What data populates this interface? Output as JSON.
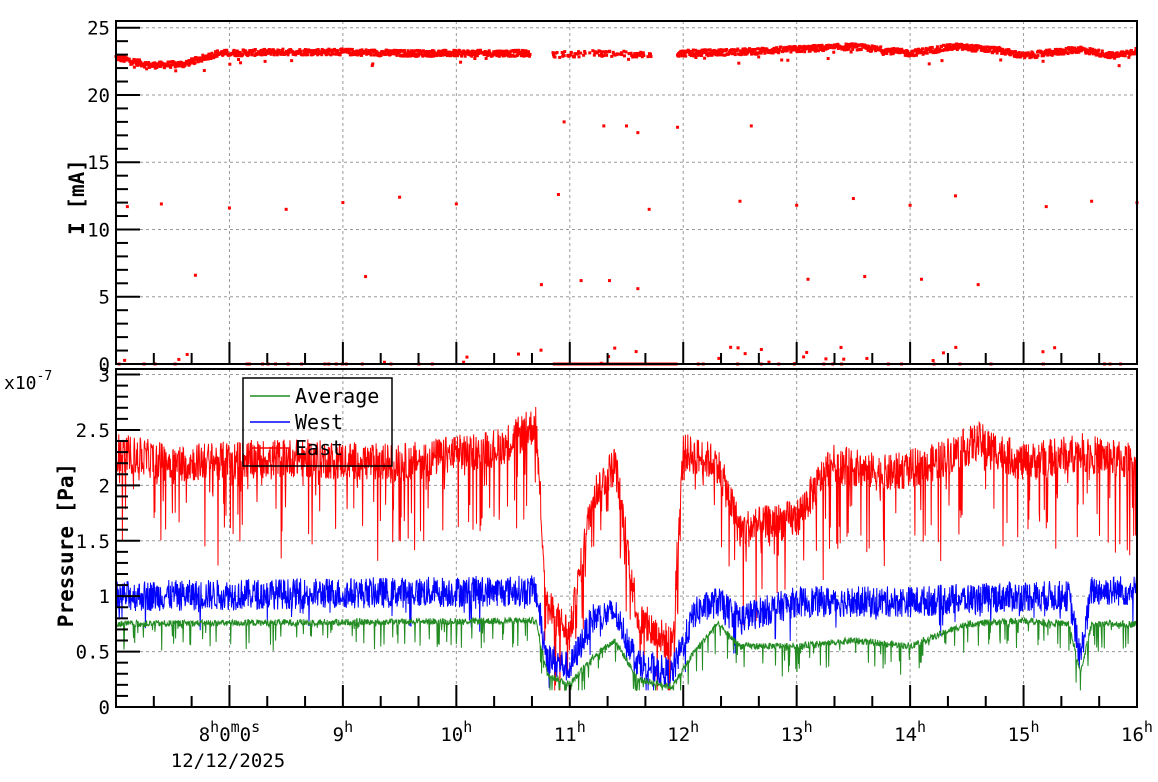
{
  "chart_data": [
    {
      "type": "scatter",
      "title": "",
      "xlabel": "",
      "ylabel": "I [mA]",
      "ylim": [
        0,
        25.5
      ],
      "yticks": [
        "0",
        "5",
        "10",
        "15",
        "20",
        "25"
      ],
      "grid": true,
      "series": [
        {
          "name": "Current",
          "color": "#ff0000",
          "description": "Beam current ~22-23.7 mA from 7.0h to 16.0h, with gap 10.65h-10.85h and 11.7h-11.95h; sporadic outliers near 18, 12, 6 and 0 mA",
          "main_band": [
            [
              7.0,
              22.8
            ],
            [
              7.3,
              22.2
            ],
            [
              7.6,
              22.3
            ],
            [
              7.9,
              23.1
            ],
            [
              8.5,
              23.2
            ],
            [
              9.0,
              23.2
            ],
            [
              9.5,
              23.1
            ],
            [
              10.0,
              23.1
            ],
            [
              10.6,
              23.1
            ],
            [
              10.9,
              23.0
            ],
            [
              11.2,
              23.1
            ],
            [
              11.6,
              23.0
            ],
            [
              12.0,
              23.1
            ],
            [
              12.5,
              23.2
            ],
            [
              13.0,
              23.4
            ],
            [
              13.5,
              23.6
            ],
            [
              14.0,
              23.1
            ],
            [
              14.4,
              23.6
            ],
            [
              14.8,
              23.3
            ],
            [
              15.0,
              22.9
            ],
            [
              15.5,
              23.4
            ],
            [
              15.8,
              22.9
            ],
            [
              16.0,
              23.3
            ]
          ],
          "outliers": [
            [
              10.95,
              18.0
            ],
            [
              11.3,
              17.7
            ],
            [
              11.5,
              17.7
            ],
            [
              11.6,
              17.2
            ],
            [
              11.95,
              17.6
            ],
            [
              12.6,
              17.7
            ],
            [
              7.1,
              11.7
            ],
            [
              7.4,
              11.9
            ],
            [
              8.0,
              11.6
            ],
            [
              8.5,
              11.5
            ],
            [
              9.0,
              12.0
            ],
            [
              9.5,
              12.4
            ],
            [
              10.0,
              11.9
            ],
            [
              10.9,
              12.6
            ],
            [
              11.7,
              11.5
            ],
            [
              12.5,
              12.1
            ],
            [
              13.0,
              11.8
            ],
            [
              13.5,
              12.3
            ],
            [
              14.0,
              11.8
            ],
            [
              14.4,
              12.5
            ],
            [
              15.2,
              11.7
            ],
            [
              15.6,
              12.1
            ],
            [
              16.0,
              12.0
            ],
            [
              7.7,
              6.6
            ],
            [
              9.2,
              6.5
            ],
            [
              10.75,
              5.9
            ],
            [
              11.1,
              6.2
            ],
            [
              11.35,
              6.2
            ],
            [
              11.6,
              5.6
            ],
            [
              13.1,
              6.3
            ],
            [
              13.6,
              6.5
            ],
            [
              14.1,
              6.3
            ],
            [
              14.6,
              5.9
            ]
          ]
        }
      ]
    },
    {
      "type": "line",
      "title": "",
      "xlabel": "",
      "ylabel": "Pressure [Pa]",
      "y_multiplier": "x10^-7",
      "ylim": [
        0,
        3.05
      ],
      "yticks": [
        "0",
        "0.5",
        "1",
        "1.5",
        "2",
        "2.5",
        "3"
      ],
      "grid": true,
      "legend_position": "upper-left",
      "series": [
        {
          "name": "Average",
          "color": "#228b22",
          "baseline": [
            [
              7.0,
              0.75
            ],
            [
              10.7,
              0.78
            ],
            [
              10.8,
              0.3
            ],
            [
              11.0,
              0.2
            ],
            [
              11.2,
              0.45
            ],
            [
              11.4,
              0.6
            ],
            [
              11.6,
              0.25
            ],
            [
              11.9,
              0.18
            ],
            [
              12.1,
              0.5
            ],
            [
              12.3,
              0.75
            ],
            [
              12.5,
              0.55
            ],
            [
              13.0,
              0.55
            ],
            [
              13.5,
              0.6
            ],
            [
              14.0,
              0.55
            ],
            [
              14.5,
              0.75
            ],
            [
              15.0,
              0.78
            ],
            [
              15.4,
              0.75
            ],
            [
              15.5,
              0.3
            ],
            [
              15.6,
              0.75
            ],
            [
              16.0,
              0.75
            ]
          ]
        },
        {
          "name": "West",
          "color": "#0000ff",
          "baseline": [
            [
              7.0,
              1.0
            ],
            [
              10.7,
              1.05
            ],
            [
              10.8,
              0.45
            ],
            [
              11.0,
              0.35
            ],
            [
              11.2,
              0.8
            ],
            [
              11.4,
              0.85
            ],
            [
              11.6,
              0.4
            ],
            [
              11.9,
              0.3
            ],
            [
              12.1,
              0.85
            ],
            [
              12.3,
              0.95
            ],
            [
              12.5,
              0.8
            ],
            [
              13.0,
              0.95
            ],
            [
              14.0,
              0.95
            ],
            [
              15.0,
              1.0
            ],
            [
              15.4,
              1.0
            ],
            [
              15.5,
              0.45
            ],
            [
              15.6,
              1.05
            ],
            [
              16.0,
              1.05
            ]
          ]
        },
        {
          "name": "East",
          "color": "#ff0000",
          "baseline": [
            [
              7.0,
              2.3
            ],
            [
              7.5,
              2.2
            ],
            [
              8.5,
              2.25
            ],
            [
              9.5,
              2.2
            ],
            [
              10.4,
              2.35
            ],
            [
              10.7,
              2.55
            ],
            [
              10.8,
              0.9
            ],
            [
              11.0,
              0.65
            ],
            [
              11.2,
              1.9
            ],
            [
              11.4,
              2.2
            ],
            [
              11.6,
              0.8
            ],
            [
              11.9,
              0.55
            ],
            [
              12.0,
              2.3
            ],
            [
              12.3,
              2.2
            ],
            [
              12.5,
              1.6
            ],
            [
              13.0,
              1.7
            ],
            [
              13.3,
              2.2
            ],
            [
              13.8,
              2.1
            ],
            [
              14.2,
              2.2
            ],
            [
              14.6,
              2.4
            ],
            [
              15.0,
              2.2
            ],
            [
              15.5,
              2.3
            ],
            [
              16.0,
              2.2
            ]
          ]
        }
      ]
    }
  ],
  "x_axis": {
    "range_hours": [
      7.0,
      16.0
    ],
    "ticks": [
      {
        "hour": 8,
        "label": "8",
        "sup1": "h",
        "mid": "0",
        "sup2": "m",
        "end": "0",
        "sup3": "s"
      },
      {
        "hour": 9,
        "label": "9",
        "sup1": "h"
      },
      {
        "hour": 10,
        "label": "10",
        "sup1": "h"
      },
      {
        "hour": 11,
        "label": "11",
        "sup1": "h"
      },
      {
        "hour": 12,
        "label": "12",
        "sup1": "h"
      },
      {
        "hour": 13,
        "label": "13",
        "sup1": "h"
      },
      {
        "hour": 14,
        "label": "14",
        "sup1": "h"
      },
      {
        "hour": 15,
        "label": "15",
        "sup1": "h"
      },
      {
        "hour": 16,
        "label": "16",
        "sup1": "h"
      }
    ],
    "date": "12/12/2025"
  },
  "labels": {
    "top_ylabel": "I [mA]",
    "bottom_ylabel": "Pressure [Pa]",
    "multiplier_base": "x10",
    "multiplier_exp": "-7",
    "legend": [
      "Average",
      "West",
      "East"
    ]
  }
}
